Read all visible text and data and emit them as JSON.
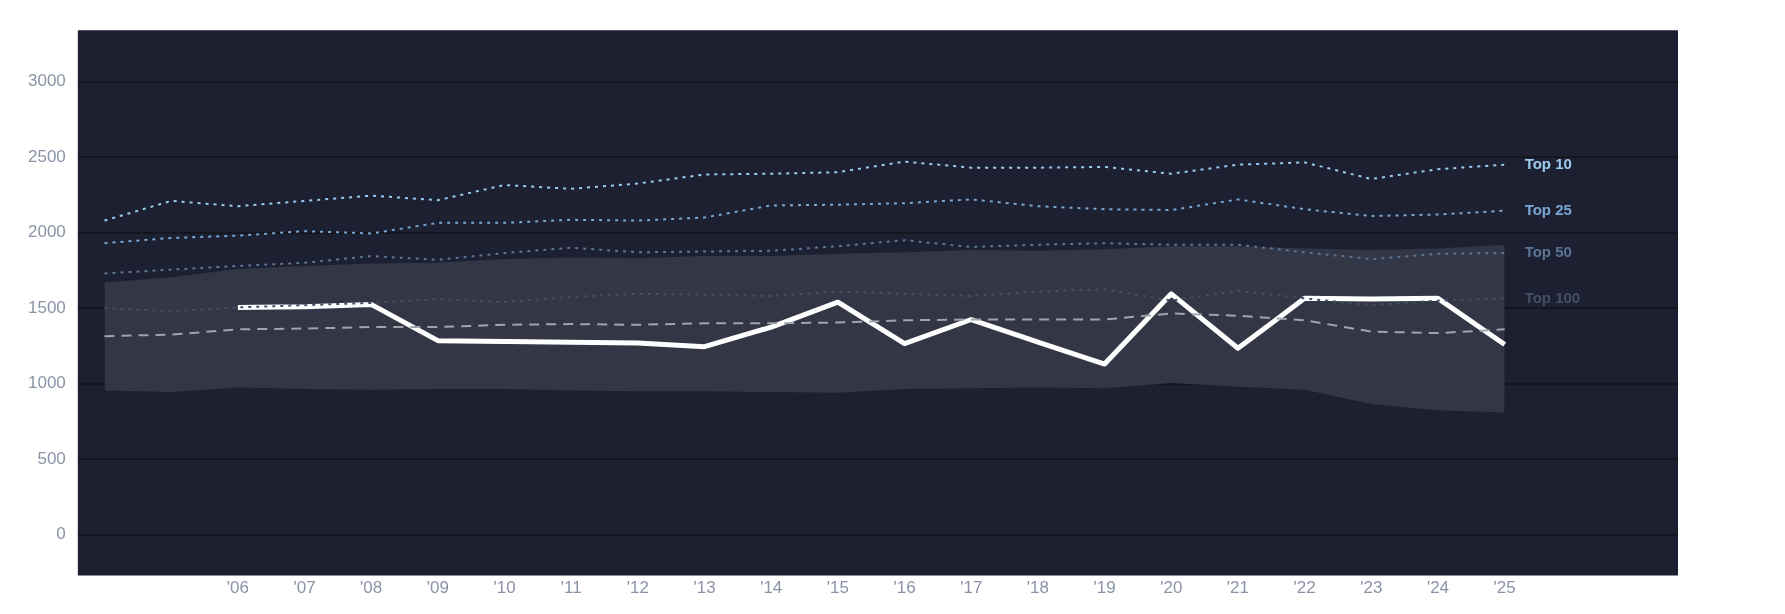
{
  "chart_data": {
    "type": "line",
    "x": [
      2004,
      2005,
      2006,
      2007,
      2008,
      2009,
      2010,
      2011,
      2012,
      2013,
      2014,
      2015,
      2016,
      2017,
      2018,
      2019,
      2020,
      2021,
      2022,
      2023,
      2024,
      2025
    ],
    "xlim": [
      2003.6,
      2027.6
    ],
    "xticks": [
      {
        "value": 2006,
        "label": "'06"
      },
      {
        "value": 2007,
        "label": "'07"
      },
      {
        "value": 2008,
        "label": "'08"
      },
      {
        "value": 2009,
        "label": "'09"
      },
      {
        "value": 2010,
        "label": "'10"
      },
      {
        "value": 2011,
        "label": "'11"
      },
      {
        "value": 2012,
        "label": "'12"
      },
      {
        "value": 2013,
        "label": "'13"
      },
      {
        "value": 2014,
        "label": "'14"
      },
      {
        "value": 2015,
        "label": "'15"
      },
      {
        "value": 2016,
        "label": "'16"
      },
      {
        "value": 2017,
        "label": "'17"
      },
      {
        "value": 2018,
        "label": "'18"
      },
      {
        "value": 2019,
        "label": "'19"
      },
      {
        "value": 2020,
        "label": "'20"
      },
      {
        "value": 2021,
        "label": "'21"
      },
      {
        "value": 2022,
        "label": "'22"
      },
      {
        "value": 2023,
        "label": "'23"
      },
      {
        "value": 2024,
        "label": "'24"
      },
      {
        "value": 2025,
        "label": "'25"
      }
    ],
    "ylim": [
      -270,
      3340
    ],
    "yticks": [
      0,
      500,
      1000,
      1500,
      2000,
      2500,
      3000
    ],
    "grid": "y",
    "legend": false,
    "marker": "none",
    "series": [
      {
        "name": "Top 10",
        "color": "#9ccbf0",
        "line_style": "dotted",
        "values": [
          2080,
          2210,
          2175,
          2210,
          2245,
          2215,
          2315,
          2290,
          2325,
          2385,
          2390,
          2400,
          2470,
          2430,
          2430,
          2435,
          2390,
          2450,
          2465,
          2355,
          2420,
          2450
        ]
      },
      {
        "name": "Top 25",
        "color": "#7aa6d2",
        "line_style": "dotted",
        "values": [
          1930,
          1965,
          1980,
          2010,
          1995,
          2065,
          2065,
          2085,
          2080,
          2100,
          2180,
          2185,
          2195,
          2220,
          2175,
          2155,
          2150,
          2220,
          2155,
          2110,
          2120,
          2145
        ]
      },
      {
        "name": "Top 50",
        "color": "#5a7496",
        "line_style": "dotted",
        "values": [
          1730,
          1755,
          1780,
          1800,
          1845,
          1820,
          1865,
          1900,
          1870,
          1875,
          1880,
          1910,
          1950,
          1905,
          1920,
          1930,
          1920,
          1920,
          1870,
          1825,
          1860,
          1865
        ]
      },
      {
        "name": "Top 100",
        "color": "#434f66",
        "line_style": "dotted",
        "values": [
          1500,
          1480,
          1505,
          1520,
          1535,
          1560,
          1540,
          1575,
          1595,
          1590,
          1580,
          1610,
          1595,
          1580,
          1610,
          1625,
          1550,
          1615,
          1565,
          1520,
          1550,
          1565
        ]
      },
      {
        "color": "#a0a4ab",
        "line_style": "dashed",
        "values": [
          1315,
          1325,
          1360,
          1365,
          1375,
          1375,
          1390,
          1395,
          1390,
          1400,
          1400,
          1405,
          1420,
          1425,
          1425,
          1425,
          1465,
          1450,
          1420,
          1345,
          1335,
          1360
        ],
        "lower": [
          955,
          945,
          975,
          965,
          960,
          965,
          965,
          955,
          950,
          950,
          945,
          940,
          965,
          970,
          975,
          970,
          1005,
          980,
          960,
          865,
          825,
          810
        ],
        "upper": [
          1670,
          1705,
          1760,
          1780,
          1795,
          1800,
          1825,
          1835,
          1830,
          1845,
          1845,
          1860,
          1870,
          1885,
          1880,
          1890,
          1910,
          1910,
          1895,
          1885,
          1895,
          1920
        ]
      },
      {
        "color": "#ffffff",
        "line_style": "solid",
        "values": [
          null,
          null,
          1505,
          1510,
          1525,
          1285,
          1280,
          1275,
          1270,
          1245,
          1375,
          1540,
          1265,
          1425,
          1275,
          1130,
          1595,
          1235,
          1565,
          1560,
          1565,
          1260
        ]
      }
    ]
  }
}
